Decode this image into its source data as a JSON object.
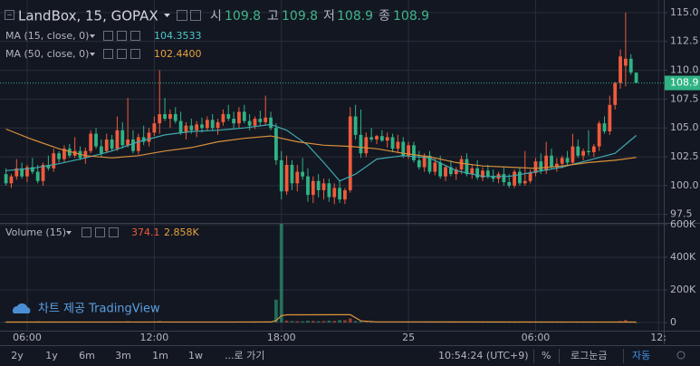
{
  "chart_data": {
    "type": "candlestick",
    "title": "LandBox, 15, GOPAX",
    "ohlc_labels": [
      "시",
      "고",
      "저",
      "종"
    ],
    "up_color": "#ef5b3b",
    "down_color": "#2fb384",
    "open": [
      101.0,
      100.2,
      100.8,
      101.5,
      100.8,
      101.6,
      101.2,
      100.4,
      101.8,
      101.5,
      102.8,
      102.3,
      103.2,
      102.6,
      103.0,
      102.4,
      103.0,
      104.5,
      103.4,
      103.0,
      104.0,
      103.2,
      104.8,
      103.5,
      104.0,
      103.0,
      104.2,
      103.8,
      104.6,
      105.4,
      106.2,
      105.8,
      106.2,
      105.6,
      104.6,
      105.2,
      104.8,
      105.3,
      105.0,
      105.7,
      105.0,
      105.5,
      106.2,
      105.8,
      105.4,
      106.4,
      105.6,
      105.2,
      105.8,
      105.5,
      105.9,
      105.0,
      102.2,
      99.5,
      101.8,
      100.2,
      101.2,
      100.8,
      99.2,
      100.4,
      99.6,
      100.2,
      99.0,
      99.8,
      98.8,
      99.6,
      106.0,
      104.4,
      102.8,
      104.2,
      104.0,
      104.3,
      103.9,
      104.2,
      103.2,
      103.8,
      102.6,
      103.5,
      102.2,
      101.6,
      102.6,
      101.2,
      102.0,
      100.8,
      101.6,
      101.0,
      101.4,
      102.3,
      101.0,
      101.5,
      100.7,
      101.3,
      100.8,
      100.6,
      101.0,
      100.3,
      100.0,
      101.2,
      100.2,
      100.4,
      101.1,
      102.1,
      101.3,
      102.6,
      101.6,
      101.9,
      102.4,
      102.0,
      103.4,
      102.6,
      103.0,
      102.9,
      103.4,
      105.4,
      104.7,
      107.0,
      108.9,
      110.4,
      111.0,
      109.8
    ],
    "high": [
      101.5,
      101.0,
      102.3,
      102.0,
      101.8,
      102.4,
      101.8,
      102.0,
      102.6,
      103.2,
      103.0,
      103.5,
      103.6,
      104.2,
      103.4,
      103.3,
      104.8,
      105.0,
      104.0,
      104.5,
      104.4,
      106.0,
      105.5,
      107.6,
      104.8,
      104.5,
      105.2,
      105.0,
      106.0,
      110.0,
      107.6,
      106.6,
      106.8,
      106.4,
      105.5,
      105.8,
      105.6,
      105.9,
      106.0,
      106.2,
      105.8,
      106.6,
      107.0,
      106.4,
      106.8,
      107.0,
      106.2,
      106.0,
      106.5,
      107.8,
      106.4,
      105.4,
      103.0,
      102.6,
      102.2,
      101.8,
      102.4,
      101.5,
      100.8,
      101.0,
      100.6,
      100.6,
      100.2,
      100.5,
      99.8,
      106.8,
      107.0,
      106.6,
      104.6,
      105.0,
      104.4,
      104.8,
      104.6,
      104.5,
      104.4,
      104.2,
      103.8,
      103.8,
      103.0,
      102.8,
      103.0,
      102.4,
      102.6,
      101.8,
      102.2,
      101.6,
      102.6,
      102.8,
      101.8,
      102.2,
      101.6,
      101.8,
      101.4,
      101.2,
      101.6,
      101.0,
      101.4,
      101.6,
      103.0,
      101.4,
      102.4,
      102.8,
      103.8,
      103.2,
      102.4,
      102.6,
      103.0,
      104.5,
      104.0,
      103.2,
      104.8,
      103.6,
      105.6,
      106.0,
      107.8,
      109.0,
      111.8,
      115.0,
      111.4,
      109.8
    ],
    "low": [
      100.0,
      99.8,
      100.5,
      100.6,
      100.3,
      101.0,
      100.2,
      100.0,
      101.3,
      101.2,
      102.0,
      102.0,
      102.4,
      102.4,
      102.2,
      101.9,
      102.8,
      103.2,
      102.5,
      102.8,
      103.0,
      103.0,
      103.2,
      103.3,
      102.8,
      102.7,
      103.5,
      103.4,
      104.3,
      104.5,
      105.6,
      105.0,
      105.4,
      104.4,
      104.0,
      104.5,
      104.2,
      104.6,
      104.8,
      104.8,
      104.4,
      105.2,
      105.6,
      105.0,
      105.0,
      105.4,
      104.8,
      104.9,
      105.2,
      105.2,
      104.8,
      101.8,
      98.8,
      99.2,
      99.6,
      99.5,
      100.5,
      98.6,
      98.5,
      99.0,
      98.8,
      98.6,
      98.4,
      98.5,
      98.4,
      99.4,
      104.0,
      102.4,
      102.5,
      103.8,
      103.6,
      103.8,
      103.3,
      102.9,
      102.8,
      102.4,
      102.3,
      102.0,
      101.4,
      101.2,
      101.0,
      100.9,
      100.6,
      100.4,
      100.8,
      100.5,
      101.0,
      100.8,
      100.6,
      100.5,
      100.4,
      100.6,
      100.3,
      100.2,
      100.0,
      99.8,
      99.8,
      100.0,
      100.0,
      100.2,
      100.8,
      101.0,
      101.0,
      101.4,
      101.2,
      101.5,
      101.8,
      101.8,
      102.4,
      102.2,
      102.6,
      102.5,
      103.0,
      104.5,
      104.4,
      106.6,
      108.4,
      108.6,
      109.6,
      108.9
    ],
    "close": [
      100.2,
      100.8,
      101.5,
      100.8,
      101.6,
      101.2,
      100.4,
      101.8,
      101.5,
      102.8,
      102.3,
      103.2,
      102.6,
      103.0,
      102.4,
      103.0,
      104.5,
      103.4,
      102.8,
      104.0,
      103.2,
      104.8,
      103.5,
      104.0,
      103.0,
      104.2,
      103.8,
      104.6,
      105.4,
      106.2,
      105.8,
      106.2,
      105.6,
      104.6,
      105.2,
      104.8,
      105.3,
      105.0,
      105.7,
      105.0,
      105.5,
      106.2,
      105.8,
      105.4,
      106.4,
      105.6,
      105.2,
      105.8,
      105.5,
      105.9,
      105.0,
      102.2,
      99.5,
      101.8,
      100.2,
      101.2,
      100.8,
      99.2,
      100.4,
      99.6,
      100.2,
      99.0,
      99.8,
      98.8,
      99.6,
      106.0,
      104.4,
      102.8,
      104.2,
      104.0,
      104.3,
      103.9,
      104.2,
      103.2,
      103.8,
      102.6,
      103.5,
      102.2,
      101.6,
      102.6,
      101.2,
      102.0,
      100.8,
      101.6,
      101.0,
      101.4,
      102.3,
      101.0,
      101.5,
      100.7,
      101.3,
      100.8,
      100.6,
      101.0,
      100.3,
      100.0,
      101.2,
      100.2,
      100.4,
      101.1,
      102.1,
      101.3,
      102.6,
      101.6,
      101.9,
      102.4,
      102.0,
      103.4,
      102.6,
      103.0,
      102.9,
      103.4,
      105.4,
      104.7,
      107.0,
      108.9,
      111.2,
      111.0,
      109.8,
      108.9
    ],
    "xlim": [
      -1.13,
      124.2
    ],
    "xticks": [
      {
        "value": 4,
        "label": "06:00"
      },
      {
        "value": 28,
        "label": "12:00"
      },
      {
        "value": 52,
        "label": "18:00"
      },
      {
        "value": 76,
        "label": "25"
      },
      {
        "value": 100,
        "label": "06:00"
      },
      {
        "value": 123.2,
        "label": "12:"
      }
    ],
    "ylim": [
      96.85,
      115.7
    ],
    "yticks": [
      {
        "value": 97.5,
        "label": "97.5"
      },
      {
        "value": 100,
        "label": "100.0"
      },
      {
        "value": 102.5,
        "label": "102.5"
      },
      {
        "value": 105,
        "label": "105.0"
      },
      {
        "value": 107.5,
        "label": "107.5"
      },
      {
        "value": 110,
        "label": "110.0"
      },
      {
        "value": 112.5,
        "label": "112.5"
      },
      {
        "value": 115,
        "label": "115.0"
      }
    ],
    "grid": true,
    "overlays": [
      {
        "name": "MA (15, close, 0)",
        "color": "#3fa9b0",
        "x": [
          0,
          5,
          10,
          15,
          20,
          25,
          30,
          35,
          40,
          45,
          50,
          53,
          57,
          60,
          63,
          66,
          70,
          75,
          80,
          85,
          90,
          95,
          100,
          105,
          110,
          115,
          119
        ],
        "values": [
          101.3,
          101.5,
          101.9,
          102.4,
          103.0,
          103.8,
          104.4,
          104.7,
          104.8,
          105.0,
          105.3,
          104.8,
          103.5,
          102.0,
          100.4,
          101.0,
          102.3,
          102.6,
          102.4,
          101.3,
          100.8,
          100.8,
          101.2,
          101.6,
          102.2,
          102.8,
          104.3533
        ]
      },
      {
        "name": "MA (50, close, 0)",
        "color": "#d9903a",
        "x": [
          0,
          5,
          10,
          15,
          20,
          25,
          30,
          35,
          40,
          45,
          50,
          55,
          60,
          65,
          70,
          75,
          80,
          85,
          90,
          95,
          100,
          105,
          110,
          115,
          119
        ],
        "values": [
          104.9,
          104.0,
          103.2,
          102.6,
          102.4,
          102.6,
          103.0,
          103.3,
          103.8,
          104.1,
          104.3,
          103.8,
          103.5,
          103.4,
          103.2,
          102.8,
          102.5,
          102.0,
          101.7,
          101.6,
          101.5,
          101.7,
          102.0,
          102.2,
          102.44
        ],
        "value_labels": [
          null,
          null,
          null,
          null,
          null,
          null,
          null,
          null,
          null,
          null,
          null,
          null,
          null,
          null,
          null,
          null,
          null,
          null,
          null,
          null,
          null,
          null,
          null,
          null,
          "102.4400"
        ]
      }
    ],
    "volume": {
      "name": "Volume (15)",
      "values": [
        4000,
        3000,
        6000,
        2500,
        5000,
        3500,
        7000,
        4000,
        3000,
        6000,
        2000,
        4500,
        3000,
        5000,
        2500,
        3500,
        6000,
        3000,
        2000,
        4000,
        3000,
        5500,
        2500,
        8000,
        3000,
        2000,
        4000,
        3500,
        5000,
        9000,
        4000,
        3000,
        2500,
        3500,
        2000,
        3000,
        2500,
        4000,
        2000,
        3000,
        2500,
        4000,
        3000,
        2000,
        3500,
        2500,
        3000,
        2000,
        4000,
        6000,
        5000,
        140000,
        610000,
        12000,
        9000,
        8000,
        7000,
        11000,
        10000,
        8000,
        9000,
        12000,
        10000,
        15000,
        14000,
        25000,
        9000,
        7000,
        4000,
        3000,
        2500,
        2000,
        3000,
        2500,
        2000,
        3000,
        2000,
        2500,
        3000,
        2000,
        2500,
        1500,
        2000,
        2500,
        1500,
        2000,
        1800,
        2500,
        1500,
        2000,
        1500,
        1800,
        1200,
        1500,
        1000,
        1200,
        1500,
        1000,
        1800,
        1200,
        1500,
        1000,
        2000,
        1200,
        1500,
        1000,
        1800,
        2500,
        1500,
        1200,
        2000,
        1500,
        3000,
        2500,
        4000,
        6000,
        9000,
        15000,
        6000,
        374.1
      ],
      "color": "#e0953a",
      "ylim": [
        -50000,
        600000
      ],
      "yticks": [
        0,
        {
          "value": 200000,
          "label": "200K"
        },
        {
          "value": 400000,
          "label": "400K"
        },
        {
          "value": 600000,
          "label": "600K"
        }
      ],
      "ma": {
        "color": "#e0953a",
        "x": [
          0,
          50,
          51,
          52,
          53,
          65,
          67,
          70,
          119
        ],
        "values": [
          3000,
          3500,
          12000,
          42000,
          47000,
          48000,
          10000,
          4000,
          2858
        ],
        "value_labels": [
          null,
          null,
          null,
          null,
          null,
          null,
          null,
          null,
          "2.858K"
        ]
      }
    }
  },
  "watermark": "차트 제공 TradingView",
  "toolbar": {
    "ranges": [
      "2y",
      "1y",
      "6m",
      "3m",
      "1m",
      "1w"
    ],
    "goto": "...로 가기",
    "clock": "10:54:24 (UTC+9)",
    "percent": "%",
    "log": "로그눈금",
    "auto": "자동"
  }
}
